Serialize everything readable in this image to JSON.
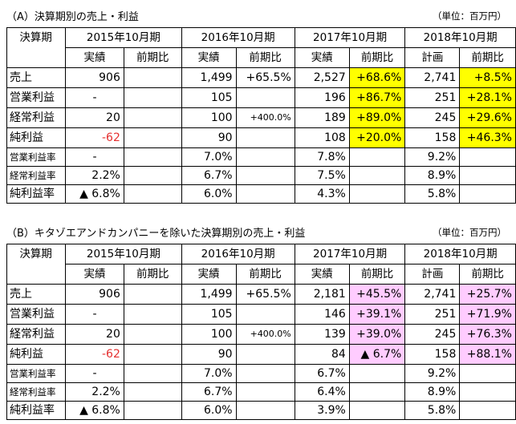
{
  "colors": {
    "highlight_a": "#ffff00",
    "highlight_b": "#ffccff",
    "negative": "#e53030"
  },
  "table_a": {
    "title": "（A）決算期別の売上・利益",
    "unit": "（単位：百万円）",
    "corner": "決算期",
    "periods": [
      "2015年10月期",
      "2016年10月期",
      "2017年10月期",
      "2018年10月期"
    ],
    "subheaders": [
      "実績",
      "前期比",
      "実績",
      "前期比",
      "実績",
      "前期比",
      "計画",
      "前期比"
    ],
    "rows": [
      {
        "label": "売上",
        "cells": [
          "906",
          "",
          "1,499",
          "+65.5%",
          "2,527",
          "+68.6%",
          "2,741",
          "+8.5%"
        ]
      },
      {
        "label": "営業利益",
        "cells": [
          "-",
          "",
          "105",
          "",
          "196",
          "+86.7%",
          "251",
          "+28.1%"
        ]
      },
      {
        "label": "経常利益",
        "cells": [
          "20",
          "",
          "100",
          "+400.0%",
          "189",
          "+89.0%",
          "245",
          "+29.6%"
        ]
      },
      {
        "label": "純利益",
        "cells": [
          "-62",
          "",
          "90",
          "",
          "108",
          "+20.0%",
          "158",
          "+46.3%"
        ]
      },
      {
        "label": "営業利益率",
        "cells": [
          "-",
          "",
          "7.0%",
          "",
          "7.8%",
          "",
          "9.2%",
          ""
        ]
      },
      {
        "label": "経常利益率",
        "cells": [
          "2.2%",
          "",
          "6.7%",
          "",
          "7.5%",
          "",
          "8.9%",
          ""
        ]
      },
      {
        "label": "純利益率",
        "cells": [
          "▲ 6.8%",
          "",
          "6.0%",
          "",
          "4.3%",
          "",
          "5.8%",
          ""
        ]
      }
    ]
  },
  "table_b": {
    "title": "（B）キタゾエアンドカンパニーを除いた決算期別の売上・利益",
    "unit": "（単位：百万円）",
    "corner": "決算期",
    "periods": [
      "2015年10月期",
      "2016年10月期",
      "2017年10月期",
      "2018年10月期"
    ],
    "subheaders": [
      "実績",
      "前期比",
      "実績",
      "前期比",
      "実績",
      "前期比",
      "計画",
      "前期比"
    ],
    "rows": [
      {
        "label": "売上",
        "cells": [
          "906",
          "",
          "1,499",
          "+65.5%",
          "2,181",
          "+45.5%",
          "2,741",
          "+25.7%"
        ]
      },
      {
        "label": "営業利益",
        "cells": [
          "-",
          "",
          "105",
          "",
          "146",
          "+39.1%",
          "251",
          "+71.9%"
        ]
      },
      {
        "label": "経常利益",
        "cells": [
          "20",
          "",
          "100",
          "+400.0%",
          "139",
          "+39.0%",
          "245",
          "+76.3%"
        ]
      },
      {
        "label": "純利益",
        "cells": [
          "-62",
          "",
          "90",
          "",
          "84",
          "▲ 6.7%",
          "158",
          "+88.1%"
        ]
      },
      {
        "label": "営業利益率",
        "cells": [
          "-",
          "",
          "7.0%",
          "",
          "6.7%",
          "",
          "9.2%",
          ""
        ]
      },
      {
        "label": "経常利益率",
        "cells": [
          "2.2%",
          "",
          "6.7%",
          "",
          "6.4%",
          "",
          "8.9%",
          ""
        ]
      },
      {
        "label": "純利益率",
        "cells": [
          "▲ 6.8%",
          "",
          "6.0%",
          "",
          "3.9%",
          "",
          "5.8%",
          ""
        ]
      }
    ]
  }
}
